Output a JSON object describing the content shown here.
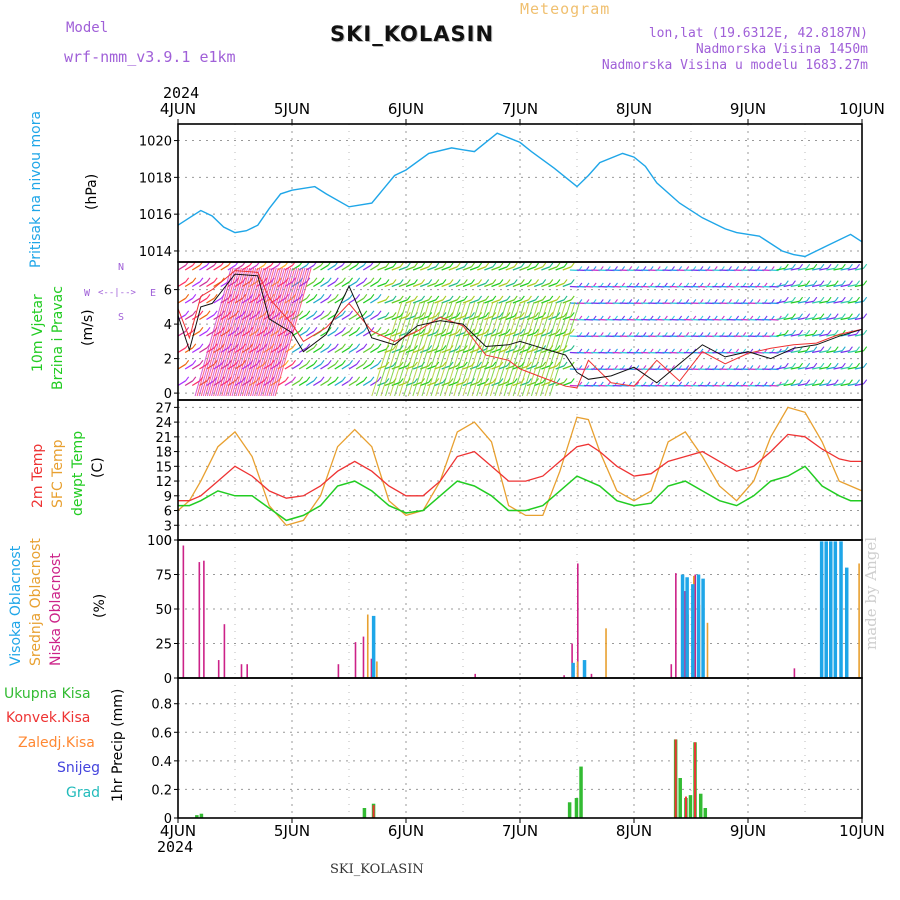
{
  "header": {
    "meteogram_label": "Meteogram",
    "model_label": "Model",
    "model_name": "wrf-nmm_v3.9.1  e1km",
    "station_title": "SKI_KOLASIN",
    "lonlat": "lon,lat (19.6312E, 42.8187N)",
    "elevation": "Nadmorska Visina 1450m",
    "elevation_model": "Nadmorska Visina u modelu 1683.27m",
    "year": "2024",
    "footer_station": "SKI_KOLASIN",
    "credit": "made by Angel"
  },
  "colors": {
    "pressure": "#1fa6e8",
    "t2m": "#ee3333",
    "sfc": "#e8a030",
    "dewpt": "#22cc22",
    "wind_speed": "#111111",
    "wind_dir": "#ee3333",
    "cloud_high": "#1fa6e8",
    "cloud_mid": "#e8a030",
    "cloud_low": "#cc2288",
    "rain_total": "#33bb33",
    "rain_conv": "#ee3333",
    "freezing": "#ff8833",
    "snow": "#4444dd",
    "hail": "#22bbbb",
    "axis_label": "#a060d8"
  },
  "chart_data": [
    {
      "type": "line",
      "title": "",
      "ylabel_left": "Pritisak na nivou mora",
      "ylabel_unit": "(hPa)",
      "xlabel": "",
      "x_ticks": [
        "4JUN",
        "5JUN",
        "6JUN",
        "7JUN",
        "8JUN",
        "9JUN",
        "10JUN"
      ],
      "ylim": [
        1013.4,
        1020.9
      ],
      "yticks": [
        "1014",
        "1016",
        "1018",
        "1020"
      ],
      "grid": true,
      "series": [
        {
          "name": "Pritisak na nivou mora",
          "x": [
            0,
            0.1,
            0.2,
            0.3,
            0.4,
            0.5,
            0.6,
            0.7,
            0.8,
            0.9,
            1.0,
            1.2,
            1.3,
            1.5,
            1.7,
            1.9,
            2.0,
            2.2,
            2.4,
            2.5,
            2.6,
            2.8,
            3.0,
            3.1,
            3.3,
            3.5,
            3.6,
            3.7,
            3.9,
            4.0,
            4.1,
            4.2,
            4.4,
            4.6,
            4.8,
            4.9,
            5.1,
            5.3,
            5.4,
            5.5,
            5.7,
            5.9,
            6.0
          ],
          "values": [
            1015.4,
            1015.8,
            1016.2,
            1015.9,
            1015.3,
            1015.0,
            1015.1,
            1015.4,
            1016.3,
            1017.1,
            1017.3,
            1017.5,
            1017.1,
            1016.4,
            1016.6,
            1018.1,
            1018.4,
            1019.3,
            1019.6,
            1019.5,
            1019.4,
            1020.4,
            1019.9,
            1019.4,
            1018.5,
            1017.5,
            1018.1,
            1018.8,
            1019.3,
            1019.1,
            1018.6,
            1017.7,
            1016.6,
            1015.8,
            1015.2,
            1015.0,
            1014.8,
            1014.0,
            1013.8,
            1013.7,
            1014.3,
            1014.9,
            1014.5
          ]
        }
      ]
    },
    {
      "type": "line",
      "title": "",
      "ylabel_left": [
        "10m Vjetar",
        "Brzina i Pravac"
      ],
      "ylabel_unit": "(m/s)",
      "compass": {
        "n": "N",
        "s": "S",
        "w": "W",
        "e": "E",
        "arrow_h": "<--|-->",
        "arrow_v": "^--|--v"
      },
      "x_ticks": [
        "4JUN",
        "5JUN",
        "6JUN",
        "7JUN",
        "8JUN",
        "9JUN",
        "10JUN"
      ],
      "ylim": [
        -0.4,
        7.6
      ],
      "yticks": [
        "0",
        "2",
        "4",
        "6"
      ],
      "grid": true,
      "series": [
        {
          "name": "Brzina",
          "x": [
            0,
            0.1,
            0.2,
            0.3,
            0.5,
            0.7,
            0.8,
            1.0,
            1.1,
            1.3,
            1.5,
            1.7,
            1.9,
            2.1,
            2.3,
            2.5,
            2.7,
            2.9,
            3.0,
            3.2,
            3.4,
            3.5,
            3.6,
            3.8,
            4.0,
            4.2,
            4.4,
            4.6,
            4.8,
            5.0,
            5.2,
            5.4,
            5.6,
            5.8,
            6.0
          ],
          "values": [
            4.5,
            2.5,
            5.0,
            5.2,
            6.9,
            6.8,
            4.3,
            3.5,
            2.4,
            3.4,
            6.2,
            3.2,
            2.8,
            3.9,
            4.2,
            4.0,
            2.7,
            2.8,
            3.0,
            2.6,
            2.2,
            1.2,
            0.8,
            1.0,
            1.5,
            0.6,
            1.7,
            2.8,
            2.1,
            2.4,
            2.0,
            2.6,
            2.8,
            3.3,
            3.7
          ]
        },
        {
          "name": "Pravac",
          "x": [
            0,
            0.1,
            0.2,
            0.3,
            0.5,
            0.7,
            0.8,
            1.0,
            1.1,
            1.3,
            1.5,
            1.7,
            1.9,
            2.1,
            2.3,
            2.5,
            2.7,
            2.9,
            3.0,
            3.2,
            3.4,
            3.5,
            3.6,
            3.8,
            4.0,
            4.2,
            4.4,
            4.6,
            4.8,
            5.0,
            5.2,
            5.4,
            5.6,
            5.8,
            6.0
          ],
          "values": [
            4.9,
            3.2,
            5.6,
            6.0,
            7.1,
            7.0,
            5.5,
            4.0,
            3.0,
            3.8,
            5.2,
            3.6,
            3.0,
            3.6,
            4.4,
            3.9,
            2.2,
            1.9,
            1.4,
            0.9,
            0.4,
            0.3,
            1.9,
            0.6,
            0.4,
            1.9,
            0.7,
            2.4,
            1.7,
            2.3,
            2.6,
            2.8,
            2.9,
            3.4,
            3.7
          ]
        }
      ],
      "barbs_note_rows": 8
    },
    {
      "type": "line",
      "title": "",
      "ylabel_left": [
        "2m Temp",
        "SFC Temp",
        "dewpt Temp"
      ],
      "ylabel_unit": "(C)",
      "x_ticks": [
        "4JUN",
        "5JUN",
        "6JUN",
        "7JUN",
        "8JUN",
        "9JUN",
        "10JUN"
      ],
      "ylim": [
        0,
        28.5
      ],
      "yticks": [
        "0",
        "3",
        "6",
        "9",
        "12",
        "15",
        "18",
        "21",
        "24",
        "27"
      ],
      "grid": true,
      "series": [
        {
          "name": "2m Temp",
          "x": [
            0,
            0.1,
            0.2,
            0.35,
            0.5,
            0.65,
            0.8,
            0.95,
            1.1,
            1.25,
            1.4,
            1.55,
            1.7,
            1.85,
            2.0,
            2.15,
            2.3,
            2.45,
            2.6,
            2.75,
            2.9,
            3.05,
            3.2,
            3.35,
            3.5,
            3.6,
            3.7,
            3.85,
            4.0,
            4.15,
            4.3,
            4.45,
            4.6,
            4.75,
            4.9,
            5.05,
            5.2,
            5.35,
            5.5,
            5.65,
            5.8,
            5.9,
            6.0
          ],
          "values": [
            8,
            8,
            9,
            12,
            15,
            13,
            10,
            8.5,
            9,
            11,
            14,
            16,
            14,
            11,
            9,
            9,
            12,
            17,
            18,
            15,
            12,
            12,
            13,
            16,
            19,
            19.5,
            18,
            15,
            13,
            13.5,
            16,
            17,
            18,
            16,
            14,
            15,
            18,
            21.5,
            21,
            18.5,
            16.5,
            16,
            16
          ]
        },
        {
          "name": "SFC Temp",
          "x": [
            0,
            0.1,
            0.2,
            0.35,
            0.5,
            0.65,
            0.8,
            0.95,
            1.1,
            1.25,
            1.4,
            1.55,
            1.7,
            1.85,
            2.0,
            2.15,
            2.3,
            2.45,
            2.6,
            2.75,
            2.9,
            3.05,
            3.2,
            3.35,
            3.5,
            3.6,
            3.7,
            3.85,
            4.0,
            4.15,
            4.3,
            4.45,
            4.6,
            4.75,
            4.9,
            5.05,
            5.2,
            5.35,
            5.5,
            5.65,
            5.8,
            5.9,
            6.0
          ],
          "values": [
            6,
            8,
            12,
            19,
            22,
            17,
            7,
            3,
            4,
            9,
            19,
            22.5,
            19,
            8,
            5,
            6,
            12,
            22,
            24,
            20,
            7,
            5,
            5,
            14,
            25,
            24.5,
            18,
            10,
            8,
            10,
            20,
            22,
            17,
            11,
            8,
            12,
            21,
            27,
            26,
            20,
            12,
            11,
            10
          ]
        },
        {
          "name": "dewpt Temp",
          "x": [
            0,
            0.1,
            0.2,
            0.35,
            0.5,
            0.65,
            0.8,
            0.95,
            1.1,
            1.25,
            1.4,
            1.55,
            1.7,
            1.85,
            2.0,
            2.15,
            2.3,
            2.45,
            2.6,
            2.75,
            2.9,
            3.05,
            3.2,
            3.35,
            3.5,
            3.6,
            3.7,
            3.85,
            4.0,
            4.15,
            4.3,
            4.45,
            4.6,
            4.75,
            4.9,
            5.05,
            5.2,
            5.35,
            5.5,
            5.65,
            5.8,
            5.9,
            6.0
          ],
          "values": [
            7,
            7,
            8,
            10,
            9,
            9,
            6.5,
            4,
            5,
            7,
            11,
            12,
            10,
            7,
            5.5,
            6,
            9,
            12,
            11,
            9,
            6,
            6,
            7,
            10,
            13,
            12,
            11,
            8,
            7,
            7.5,
            11,
            12,
            10,
            8,
            7,
            9,
            12,
            13,
            15,
            11,
            9,
            8,
            8
          ]
        }
      ]
    },
    {
      "type": "bar",
      "title": "",
      "ylabel_left": [
        "Visoka Oblacnost",
        "Srednja Oblacnost",
        "Niska Oblacnost"
      ],
      "ylabel_unit": "(%)",
      "x_ticks": [
        "4JUN",
        "5JUN",
        "6JUN",
        "7JUN",
        "8JUN",
        "9JUN",
        "10JUN"
      ],
      "ylim": [
        0,
        100
      ],
      "yticks": [
        "0",
        "25",
        "50",
        "75",
        "100"
      ],
      "grid": true,
      "series": [
        {
          "name": "Visoka Oblacnost",
          "x": [
            1.67,
            3.42,
            3.52,
            4.38,
            4.42,
            4.47,
            4.52,
            4.56,
            5.6,
            5.64,
            5.68,
            5.72,
            5.77,
            5.82
          ],
          "values": [
            45,
            11,
            13,
            75,
            73,
            68,
            75,
            72,
            99,
            99,
            99,
            99,
            99,
            80
          ]
        },
        {
          "name": "Srednja Oblacnost",
          "x": [
            1.64,
            1.72,
            3.48,
            3.73,
            4.4,
            4.45,
            4.5,
            4.55,
            4.62,
            5.95
          ],
          "values": [
            46,
            12,
            12,
            36,
            74,
            46,
            74,
            53,
            40,
            83
          ]
        },
        {
          "name": "Niska Oblacnost",
          "x": [
            0.04,
            0.18,
            0.22,
            0.35,
            0.4,
            0.55,
            0.6,
            1.4,
            1.55,
            1.62,
            1.69,
            2.6,
            3.38,
            3.45,
            3.5,
            3.62,
            4.32,
            4.36,
            4.44,
            4.53,
            4.6,
            5.4
          ],
          "values": [
            96,
            84,
            85,
            13,
            39,
            10,
            10,
            10,
            26,
            30,
            14,
            3,
            2,
            25,
            83,
            3,
            10,
            76,
            63,
            75,
            23,
            7
          ]
        }
      ]
    },
    {
      "type": "bar",
      "title": "",
      "ylabel_left": "1hr Precip (mm)",
      "legend": [
        "Ukupna Kisa",
        "Konvek.Kisa",
        "Zaledj.Kisa",
        "Snijeg",
        "Grad"
      ],
      "x_ticks": [
        "4JUN",
        "5JUN",
        "6JUN",
        "7JUN",
        "8JUN",
        "9JUN",
        "10JUN"
      ],
      "ylim": [
        0,
        0.98
      ],
      "yticks": [
        "0",
        "0.2",
        "0.4",
        "0.6",
        "0.8"
      ],
      "grid": true,
      "series": [
        {
          "name": "Ukupna Kisa",
          "x": [
            0.15,
            0.19,
            1.62,
            1.7,
            3.42,
            3.48,
            3.52,
            4.35,
            4.39,
            4.44,
            4.48,
            4.52,
            4.57,
            4.61
          ],
          "values": [
            0.02,
            0.03,
            0.07,
            0.1,
            0.11,
            0.14,
            0.36,
            0.55,
            0.28,
            0.14,
            0.16,
            0.53,
            0.17,
            0.07
          ]
        },
        {
          "name": "Konvek.Kisa",
          "x": [
            1.7,
            4.35,
            4.44,
            4.52
          ],
          "values": [
            0.09,
            0.55,
            0.15,
            0.53
          ]
        }
      ]
    }
  ]
}
